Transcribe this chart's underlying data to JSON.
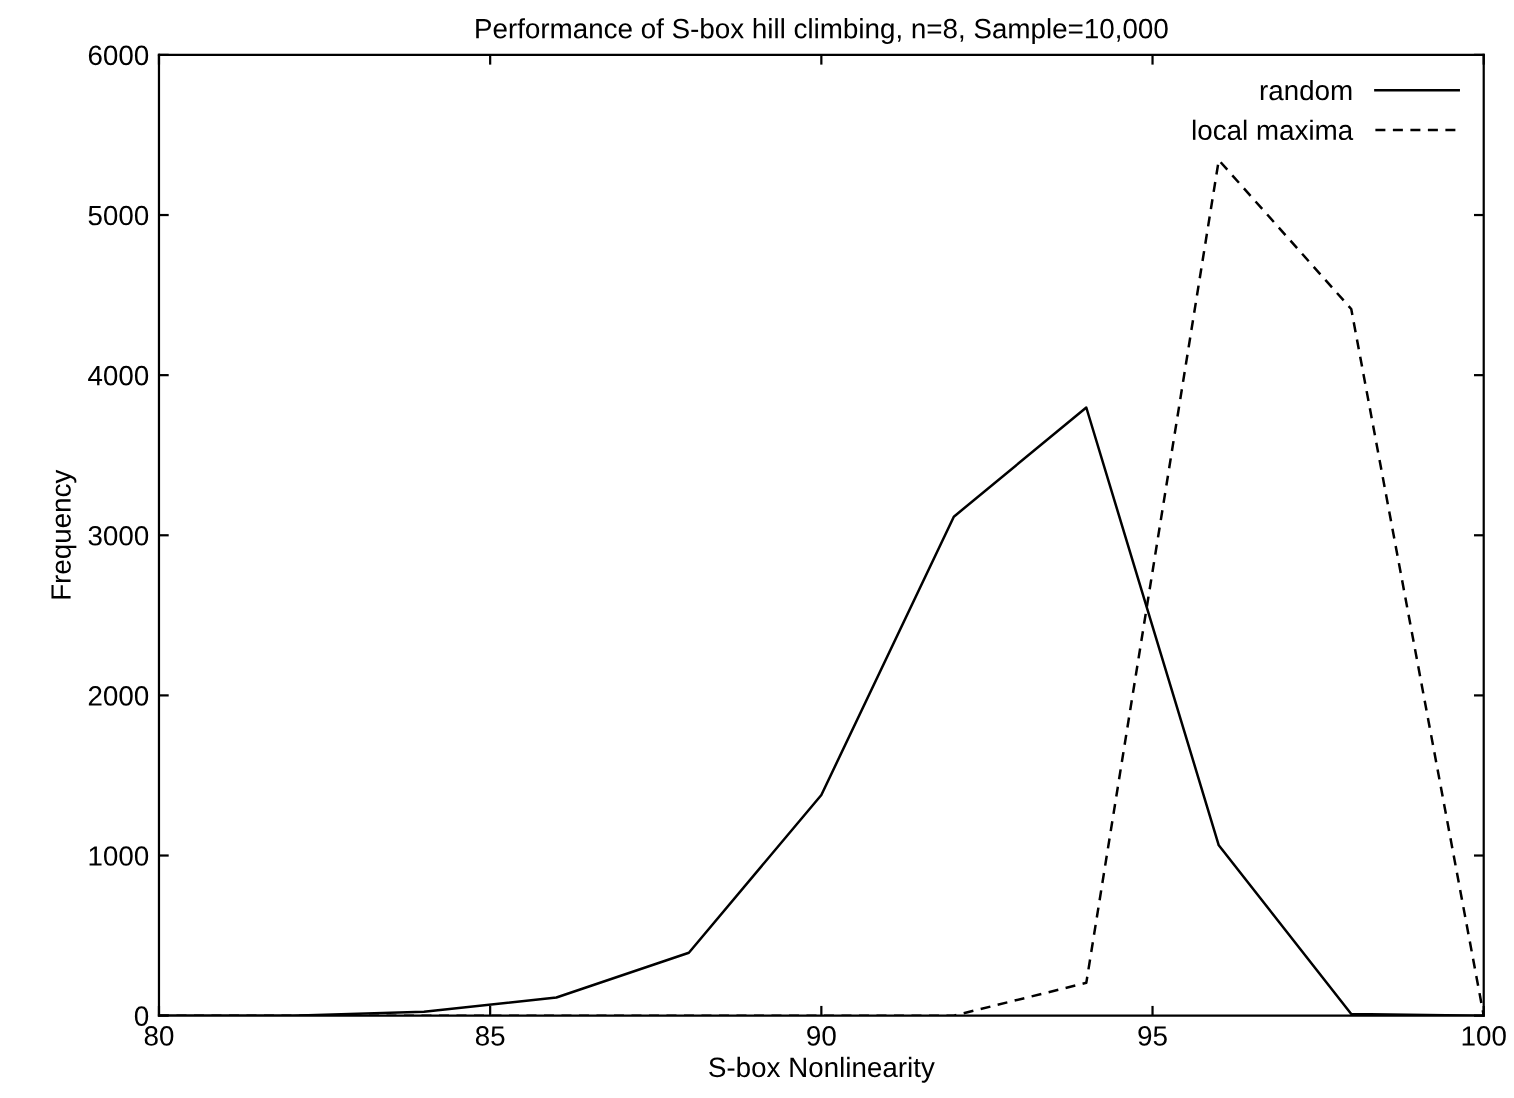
{
  "chart_data": {
    "type": "line",
    "title": "Performance of S-box hill climbing, n=8, Sample=10,000",
    "xlabel": "S-box Nonlinearity",
    "ylabel": "Frequency",
    "x": [
      80,
      82,
      84,
      86,
      88,
      90,
      92,
      94,
      96,
      98,
      100
    ],
    "series": [
      {
        "name": "random",
        "color": "#000000",
        "line_style": "solid",
        "values": [
          0,
          0,
          25,
          113,
          393,
          1378,
          3116,
          3798,
          1064,
          10,
          0
        ]
      },
      {
        "name": "local maxima",
        "color": "#000000",
        "line_style": "dashed",
        "values": [
          0,
          0,
          0,
          0,
          0,
          0,
          0,
          205,
          5343,
          4413,
          0
        ]
      }
    ],
    "xlim": [
      80,
      100
    ],
    "xticks": [
      80,
      85,
      90,
      95,
      100
    ],
    "ylim": [
      0,
      6000
    ],
    "yticks": [
      0,
      1000,
      2000,
      3000,
      4000,
      5000,
      6000
    ],
    "grid": false,
    "legend": "top right",
    "marker": "none"
  }
}
